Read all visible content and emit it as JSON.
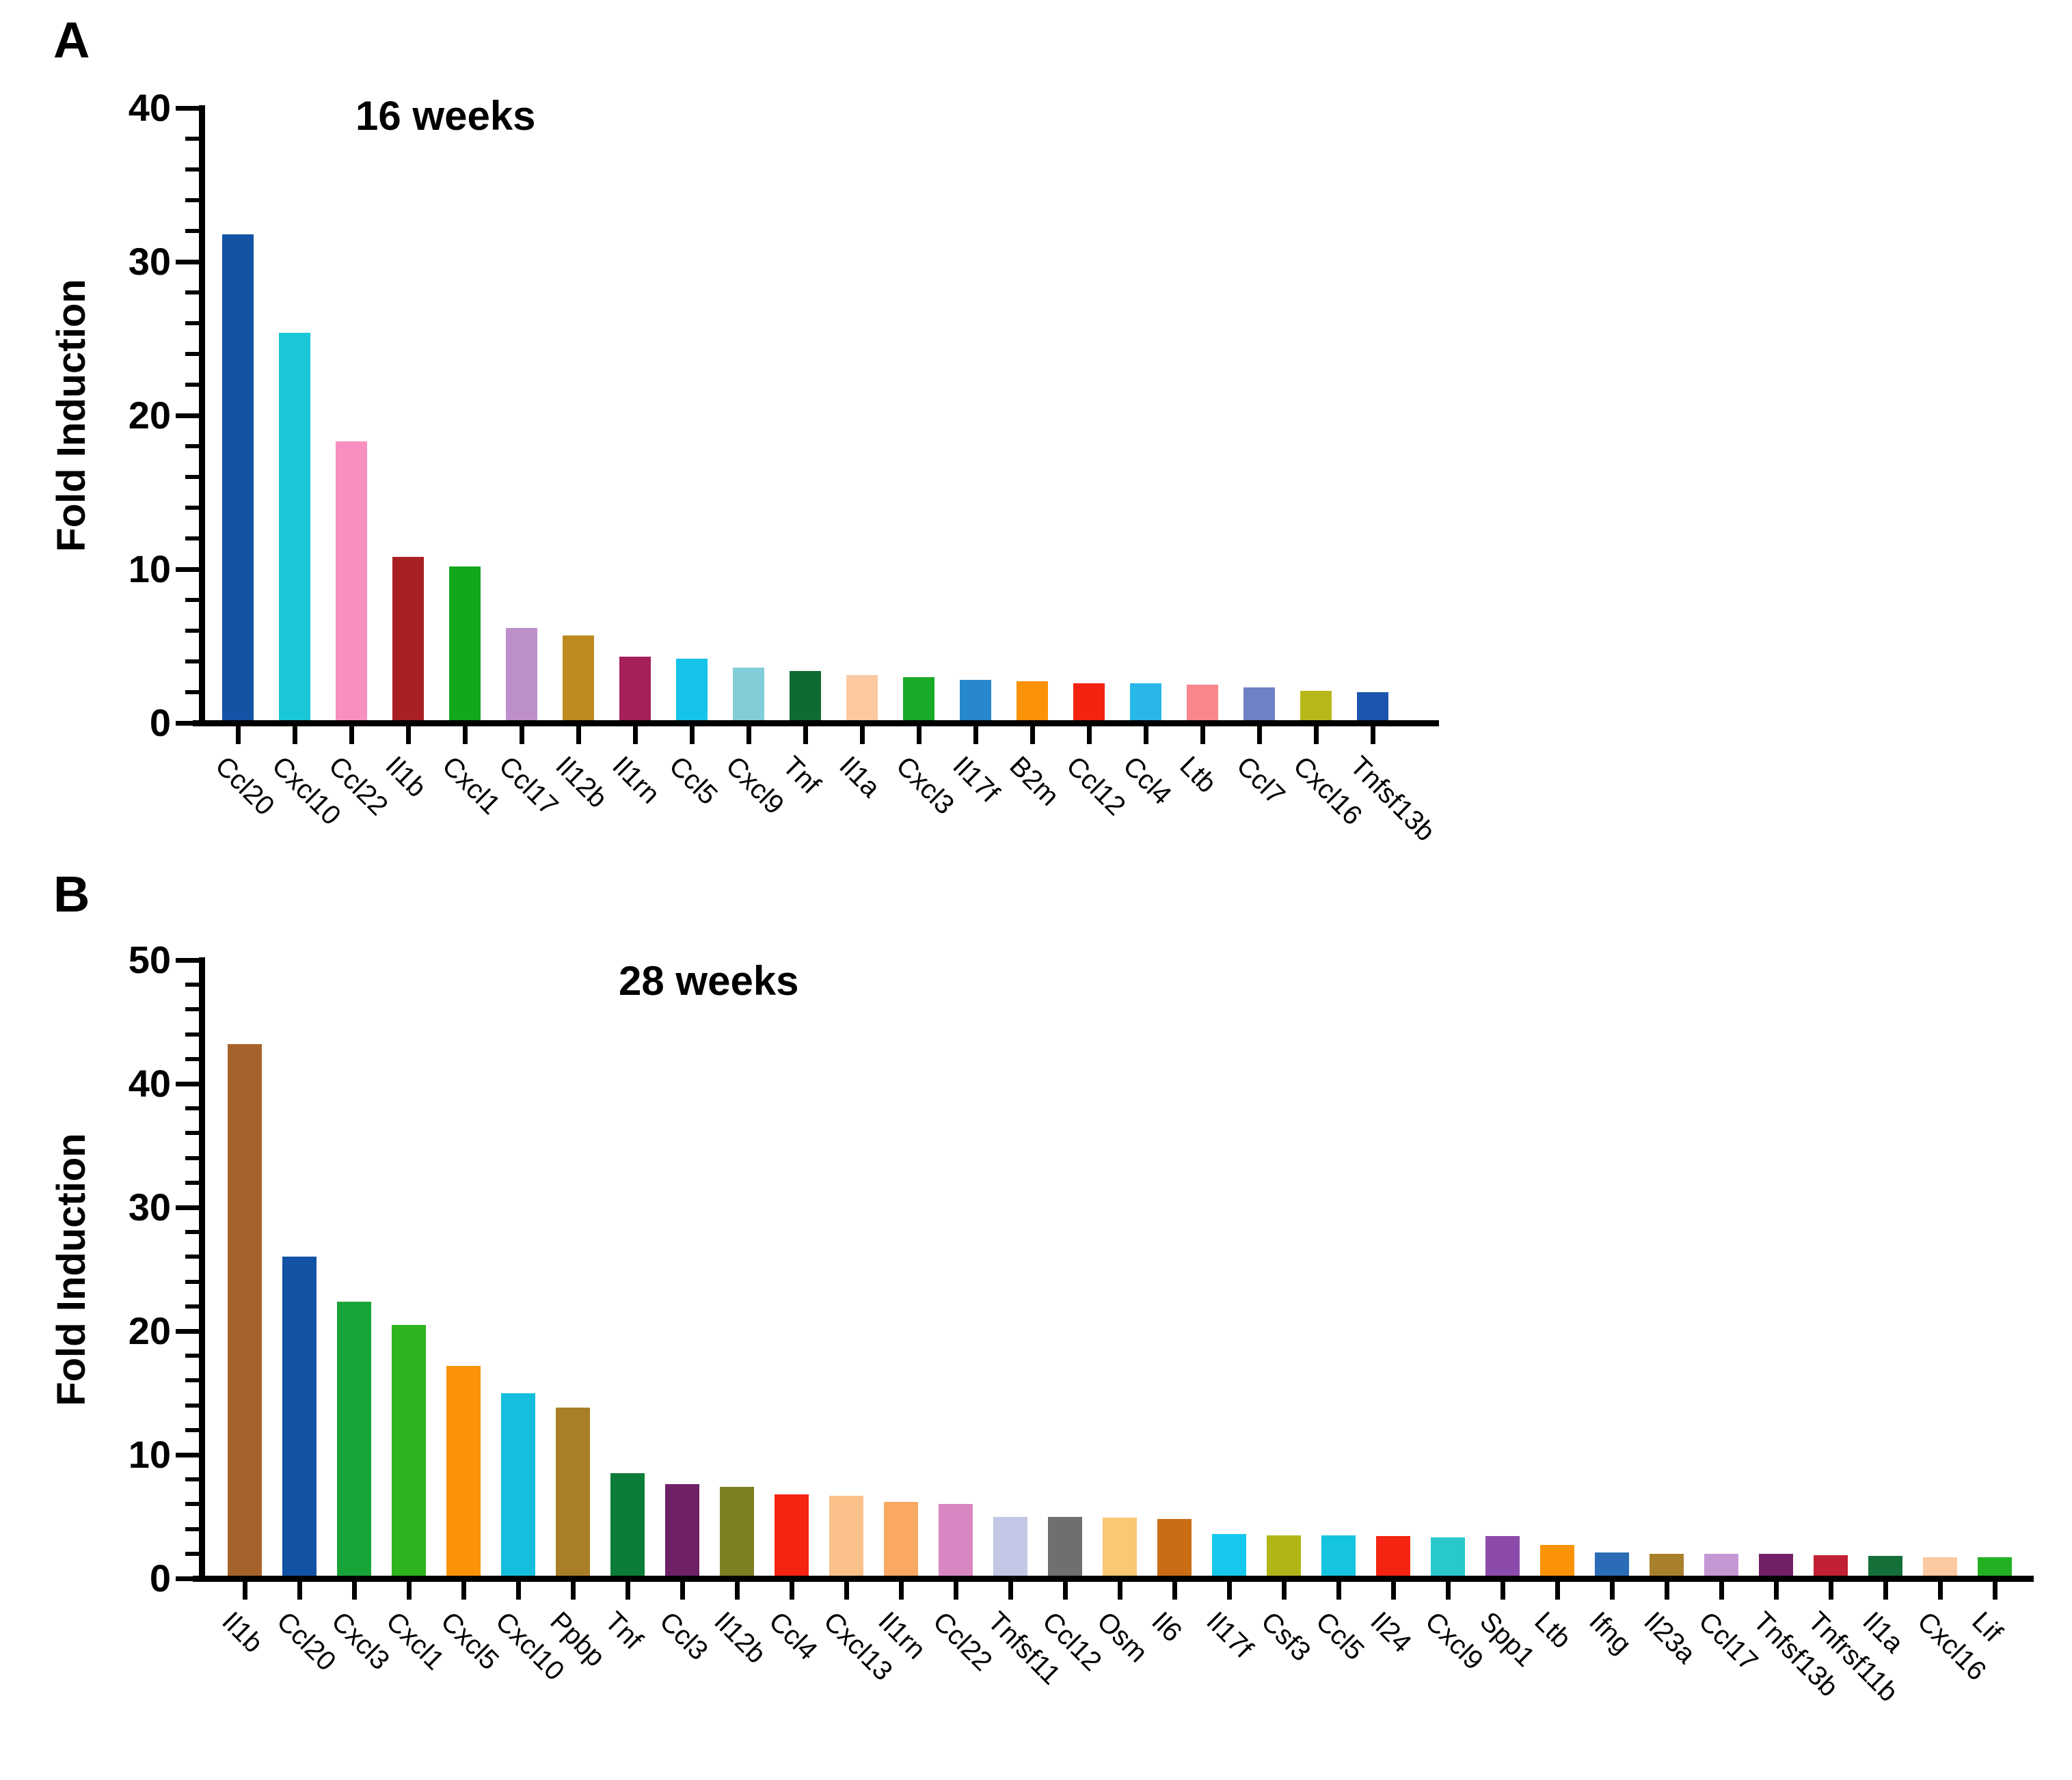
{
  "figure": {
    "background": "#ffffff",
    "axis_color": "#000000"
  },
  "chart_data": [
    {
      "type": "bar",
      "panel": "A",
      "title": "16 weeks",
      "xlabel": "",
      "ylabel": "Fold Induction",
      "ylim": [
        0,
        40
      ],
      "ytick_step": 10,
      "minor_tick_step": 2,
      "grid": "off",
      "legend": "none",
      "categories": [
        "Ccl20",
        "Cxcl10",
        "Ccl22",
        "Il1b",
        "Cxcl1",
        "Ccl17",
        "Il12b",
        "Il1rn",
        "Ccl5",
        "Cxcl9",
        "Tnf",
        "Il1a",
        "Cxcl3",
        "Il17f",
        "B2m",
        "Ccl12",
        "Ccl4",
        "Ltb",
        "Ccl7",
        "Cxcl16",
        "Tnfsf13b"
      ],
      "values": [
        31.8,
        25.4,
        18.3,
        10.8,
        10.2,
        6.2,
        5.7,
        4.3,
        4.2,
        3.6,
        3.4,
        3.1,
        3.0,
        2.8,
        2.7,
        2.6,
        2.6,
        2.5,
        2.3,
        2.1,
        2.0
      ],
      "colors": [
        "#1253a5",
        "#1ac7d8",
        "#f78fc0",
        "#a82022",
        "#12a71c",
        "#bd8fcb",
        "#bd8a1f",
        "#a52058",
        "#15c3ea",
        "#82ced8",
        "#0e6b33",
        "#fcc9a1",
        "#19ab28",
        "#2787cd",
        "#fb9207",
        "#f42311",
        "#29b7ea",
        "#f8868b",
        "#6f80c6",
        "#b6b81a",
        "#1c55b0"
      ]
    },
    {
      "type": "bar",
      "panel": "B",
      "title": "28 weeks",
      "xlabel": "",
      "ylabel": "Fold Induction",
      "ylim": [
        0,
        50
      ],
      "ytick_step": 10,
      "minor_tick_step": 2,
      "grid": "off",
      "legend": "none",
      "categories": [
        "Il1b",
        "Ccl20",
        "Cxcl3",
        "Cxcl1",
        "Cxcl5",
        "Cxcl10",
        "Ppbp",
        "Tnf",
        "Ccl3",
        "Il12b",
        "Ccl4",
        "Cxcl13",
        "Il1rn",
        "Ccl22",
        "Tnfsf11",
        "Ccl12",
        "Osm",
        "Il6",
        "Il17f",
        "Csf3",
        "Ccl5",
        "Il24",
        "Cxcl9",
        "Spp1",
        "Ltb",
        "Ifng",
        "Il23a",
        "Ccl17",
        "Tnfsf13b",
        "Tnfrsf11b",
        "Il1a",
        "Cxcl16",
        "Lif"
      ],
      "values": [
        43.2,
        26.0,
        22.4,
        20.5,
        17.2,
        15.0,
        13.8,
        8.5,
        7.6,
        7.4,
        6.8,
        6.7,
        6.2,
        6.0,
        5.0,
        5.0,
        4.9,
        4.8,
        3.6,
        3.5,
        3.5,
        3.4,
        3.3,
        3.4,
        2.7,
        2.1,
        2.0,
        2.0,
        2.0,
        1.9,
        1.8,
        1.7,
        1.7
      ],
      "colors": [
        "#a5632b",
        "#1253a5",
        "#19a439",
        "#2db41e",
        "#fb9306",
        "#15bedd",
        "#a87e26",
        "#0c7d39",
        "#6f2168",
        "#7e7f21",
        "#f52311",
        "#fbc18b",
        "#f9a963",
        "#d987c2",
        "#c3c6e5",
        "#6f6f6f",
        "#fac773",
        "#cb6d15",
        "#15c8ec",
        "#b1b517",
        "#15c5e0",
        "#f52311",
        "#28c8cb",
        "#8c4baa",
        "#fb9306",
        "#2a6cb5",
        "#a8802c",
        "#c697d5",
        "#722169",
        "#c22033",
        "#156f39",
        "#fbc9a2",
        "#23b123"
      ]
    }
  ]
}
